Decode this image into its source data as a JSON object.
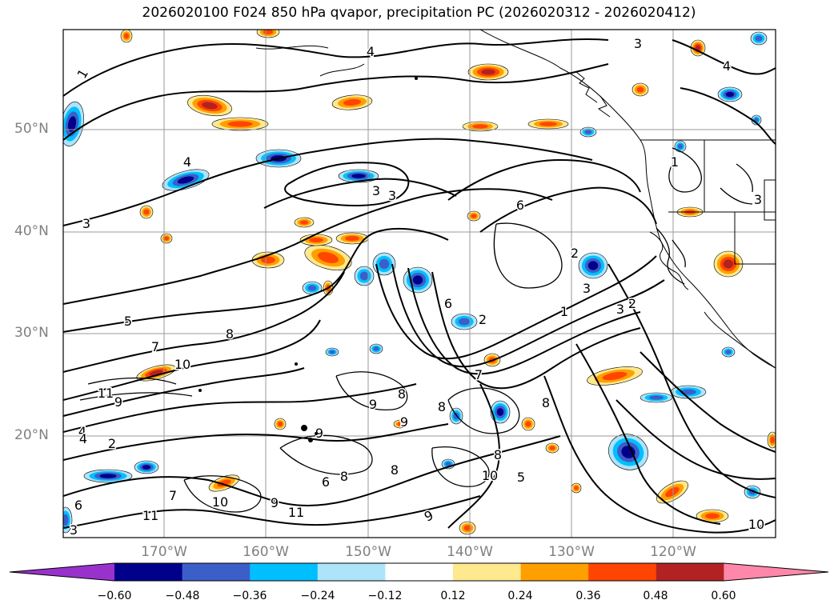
{
  "title": "2026020100 F024 850 hPa qvapor, precipitation PC (2026020312 - 2026020412)",
  "map": {
    "region": "North-East Pacific",
    "lat_labels": [
      "50°N",
      "40°N",
      "30°N",
      "20°N"
    ],
    "lon_labels": [
      "170°W",
      "160°W",
      "150°W",
      "140°W",
      "130°W",
      "120°W"
    ],
    "gridlines": true,
    "contour_color": "#000000",
    "contour_labels": [
      "1",
      "4",
      "3",
      "4",
      "3",
      "3",
      "4",
      "3",
      "6",
      "2",
      "3",
      "2",
      "1",
      "2",
      "3",
      "5",
      "7",
      "8",
      "10",
      "11",
      "9",
      "4",
      "2",
      "8",
      "9",
      "8",
      "9",
      "7",
      "8",
      "8",
      "8",
      "9",
      "10",
      "5",
      "6",
      "8",
      "6",
      "7",
      "10",
      "9",
      "11",
      "9",
      "11",
      "4",
      "10",
      "6",
      "3",
      "1",
      "3"
    ]
  },
  "chart_data": {
    "type": "heatmap",
    "variable": "precipitation PC",
    "colorbar": {
      "orientation": "horizontal",
      "extend": "both",
      "ticks": [
        "−0.60",
        "−0.48",
        "−0.36",
        "−0.24",
        "−0.12",
        "0.12",
        "0.24",
        "0.36",
        "0.48",
        "0.60"
      ],
      "bins": [
        {
          "range": "< -0.60",
          "color": "#9932cc"
        },
        {
          "range": "-0.60 to -0.48",
          "color": "#00008b"
        },
        {
          "range": "-0.48 to -0.36",
          "color": "#3c5ec8"
        },
        {
          "range": "-0.36 to -0.24",
          "color": "#00bfff"
        },
        {
          "range": "-0.24 to -0.12",
          "color": "#aee4fa"
        },
        {
          "range": "-0.12 to 0.12",
          "color": "#ffffff"
        },
        {
          "range": "0.12 to 0.24",
          "color": "#ffe98e"
        },
        {
          "range": "0.24 to 0.36",
          "color": "#ff9f00"
        },
        {
          "range": "0.36 to 0.48",
          "color": "#ff4500"
        },
        {
          "range": "0.48 to 0.60",
          "color": "#b22222"
        },
        {
          "range": "> 0.60",
          "color": "#ff88aa"
        }
      ]
    }
  }
}
